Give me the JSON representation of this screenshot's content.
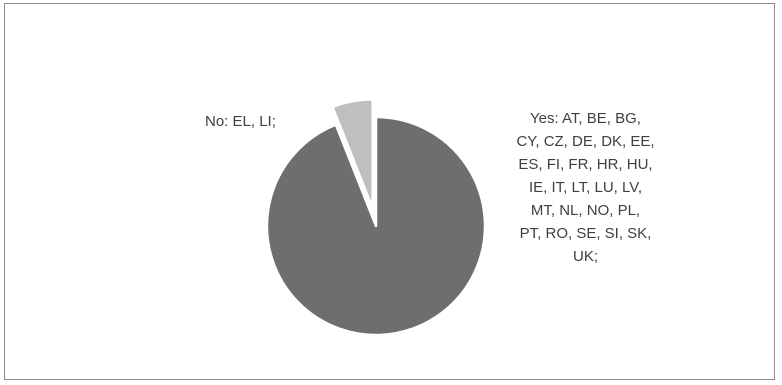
{
  "chart_data": {
    "type": "pie",
    "title": "",
    "slices": [
      {
        "label": "Yes",
        "value": 94,
        "color": "#6e6e6e",
        "display_text": "Yes: AT, BE, BG,\nCY, CZ, DE, DK, EE,\nES, FI, FR, HR, HU,\nIE, IT, LT, LU, LV,\nMT, NL, NO, PL,\nPT, RO, SE, SI, SK,\nUK;"
      },
      {
        "label": "No",
        "value": 6,
        "color": "#bfbfbf",
        "exploded": true,
        "display_text": "No: EL, LI;"
      }
    ]
  }
}
